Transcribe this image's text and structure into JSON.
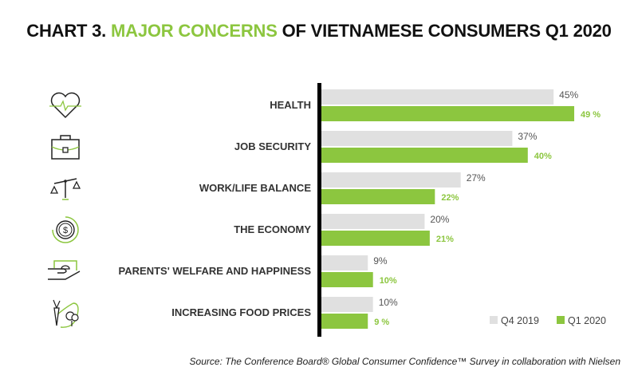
{
  "title": {
    "prefix": "CHART 3. ",
    "highlight": "MAJOR CONCERNS",
    "suffix": " OF VIETNAMESE CONSUMERS Q1 2020"
  },
  "source": "Source: The Conference Board® Global Consumer Confidence™ Survey in collaboration with Nielsen",
  "chart_data": {
    "type": "bar",
    "orientation": "horizontal",
    "title": "CHART 3. MAJOR CONCERNS OF VIETNAMESE CONSUMERS Q1 2020",
    "categories": [
      "HEALTH",
      "JOB SECURITY",
      "WORK/LIFE BALANCE",
      "THE ECONOMY",
      "PARENTS' WELFARE AND HAPPINESS",
      "INCREASING FOOD PRICES"
    ],
    "icons": [
      "heart-pulse-icon",
      "briefcase-icon",
      "balance-scale-icon",
      "dollar-coin-cycle-icon",
      "hand-money-icon",
      "vegetables-icon"
    ],
    "series": [
      {
        "name": "Q4 2019",
        "color": "#e0e0e0",
        "values": [
          45,
          37,
          27,
          20,
          9,
          10
        ],
        "labels": [
          "45%",
          "37%",
          "27%",
          "20%",
          "9%",
          "10%"
        ]
      },
      {
        "name": "Q1 2020",
        "color": "#8cc63f",
        "values": [
          49,
          40,
          22,
          21,
          10,
          9
        ],
        "labels": [
          "49 %",
          "40%",
          "22%",
          "21%",
          "10%",
          "9 %"
        ]
      }
    ],
    "xlim": [
      0,
      60
    ],
    "legend": "bottom-right",
    "grid": false
  }
}
